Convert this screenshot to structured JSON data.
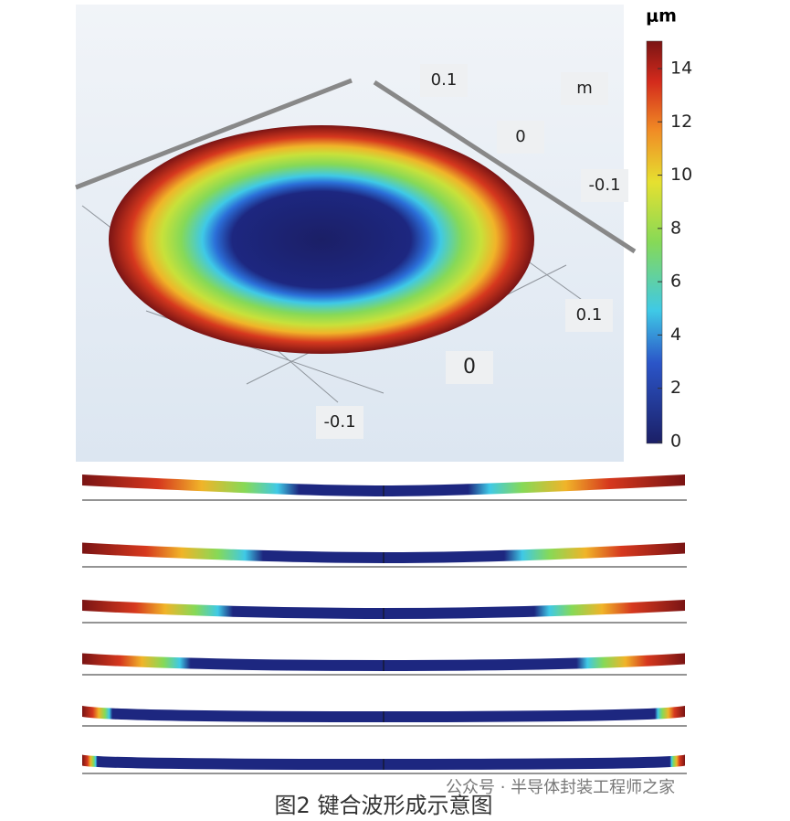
{
  "colorbar": {
    "unit": "μm",
    "ticks": [
      14,
      12,
      10,
      8,
      6,
      4,
      2,
      0
    ]
  },
  "axis_labels": [
    "0.1",
    "m",
    "0",
    "-0.1",
    "0.1",
    "0",
    "-0.1"
  ],
  "caption": "图2 键合波形成示意图",
  "watermark": "公众号 · 半导体封装工程师之家"
}
